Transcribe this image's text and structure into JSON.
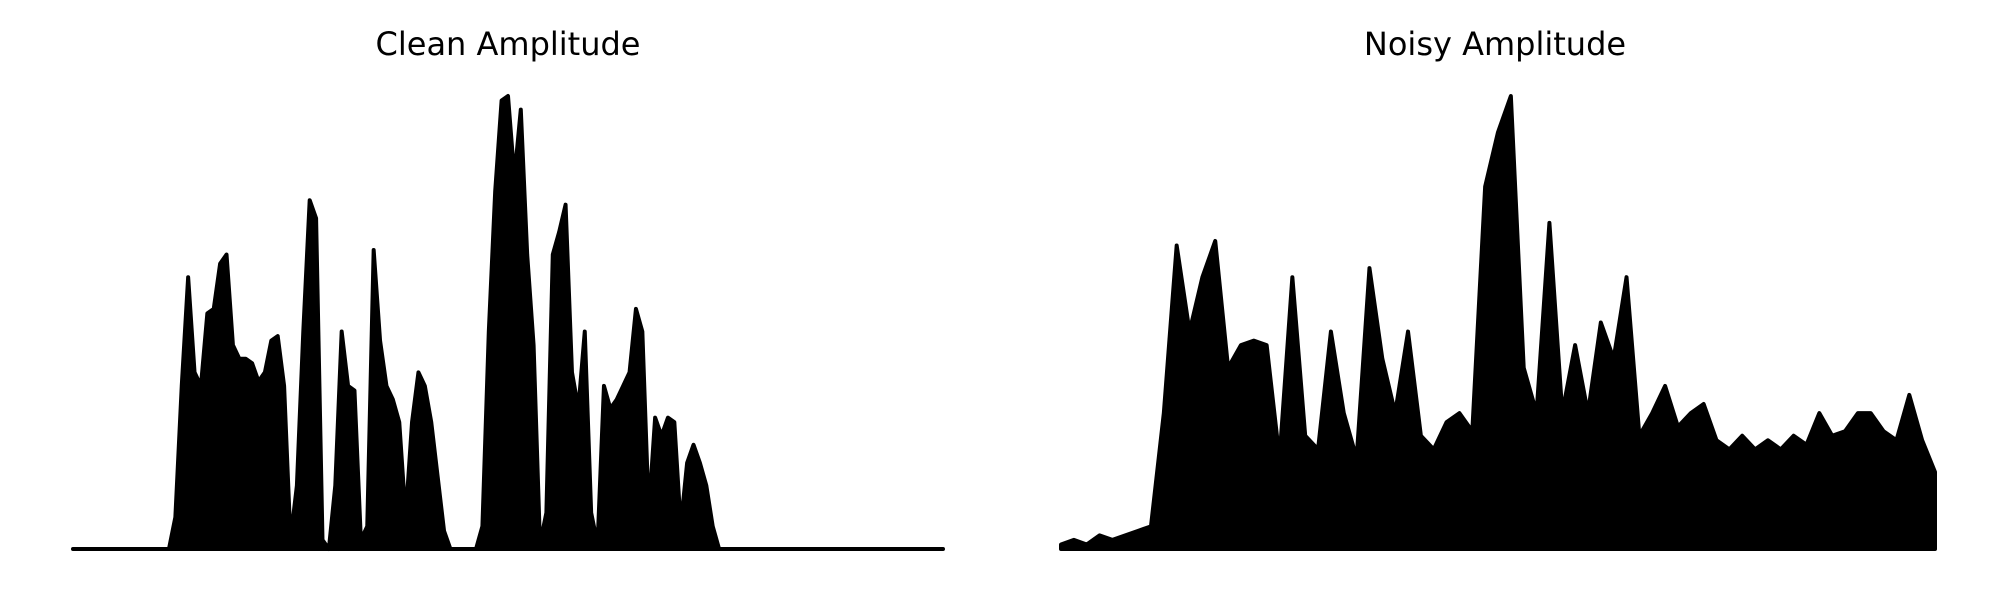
{
  "chart_data": [
    {
      "type": "area",
      "title": "Clean Amplitude",
      "color": "#000000",
      "ylim": [
        0,
        1
      ],
      "values": [
        0,
        0,
        0,
        0,
        0,
        0,
        0,
        0,
        0,
        0,
        0,
        0,
        0,
        0,
        0,
        0,
        0.07,
        0.36,
        0.6,
        0.39,
        0.36,
        0.52,
        0.53,
        0.63,
        0.65,
        0.45,
        0.42,
        0.42,
        0.41,
        0.37,
        0.39,
        0.46,
        0.47,
        0.36,
        0.02,
        0.14,
        0.48,
        0.77,
        0.73,
        0.02,
        0,
        0.14,
        0.48,
        0.36,
        0.35,
        0.02,
        0.05,
        0.66,
        0.46,
        0.36,
        0.33,
        0.28,
        0.07,
        0.28,
        0.39,
        0.36,
        0.28,
        0.16,
        0.04,
        0,
        0,
        0,
        0,
        0,
        0.05,
        0.48,
        0.79,
        0.99,
        1,
        0.82,
        0.97,
        0.65,
        0.45,
        0.01,
        0.08,
        0.65,
        0.7,
        0.76,
        0.39,
        0.31,
        0.48,
        0.08,
        0.01,
        0.36,
        0.31,
        0.33,
        0.36,
        0.39,
        0.53,
        0.48,
        0.08,
        0.29,
        0.25,
        0.29,
        0.28,
        0.05,
        0.19,
        0.23,
        0.19,
        0.14,
        0.05,
        0,
        0,
        0,
        0,
        0,
        0,
        0,
        0,
        0,
        0,
        0,
        0,
        0,
        0,
        0,
        0,
        0,
        0,
        0,
        0,
        0,
        0,
        0,
        0,
        0,
        0,
        0,
        0,
        0,
        0,
        0,
        0,
        0,
        0,
        0,
        0
      ]
    },
    {
      "type": "area",
      "title": "Noisy Amplitude",
      "color": "#000000",
      "ylim": [
        0,
        1
      ],
      "values": [
        0.01,
        0.02,
        0.01,
        0.03,
        0.02,
        0.03,
        0.04,
        0.05,
        0.3,
        0.67,
        0.48,
        0.6,
        0.68,
        0.4,
        0.45,
        0.46,
        0.45,
        0.2,
        0.6,
        0.25,
        0.22,
        0.48,
        0.3,
        0.2,
        0.62,
        0.42,
        0.3,
        0.48,
        0.25,
        0.22,
        0.28,
        0.3,
        0.26,
        0.8,
        0.92,
        1,
        0.4,
        0.3,
        0.72,
        0.3,
        0.45,
        0.3,
        0.5,
        0.42,
        0.6,
        0.25,
        0.3,
        0.36,
        0.27,
        0.3,
        0.32,
        0.24,
        0.22,
        0.25,
        0.22,
        0.24,
        0.22,
        0.25,
        0.23,
        0.3,
        0.25,
        0.26,
        0.3,
        0.3,
        0.26,
        0.24,
        0.34,
        0.24,
        0.17
      ]
    }
  ]
}
